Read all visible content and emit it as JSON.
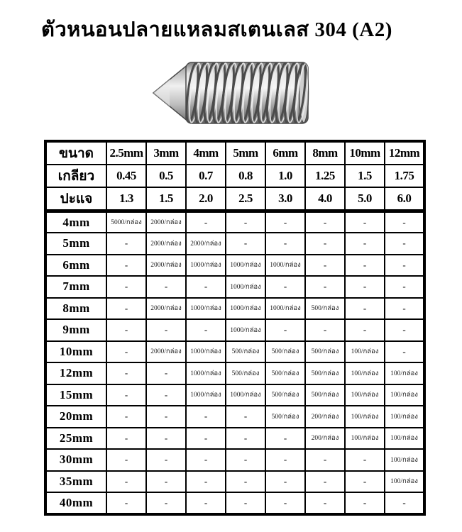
{
  "title": "ตัวหนอนปลายแหลมสเตนเลส 304 (A2)",
  "product_image": {
    "icon": "cone-point-set-screw-photo"
  },
  "table": {
    "header_rows": [
      {
        "label": "ขนาด",
        "values": [
          "2.5mm",
          "3mm",
          "4mm",
          "5mm",
          "6mm",
          "8mm",
          "10mm",
          "12mm"
        ]
      },
      {
        "label": "เกลียว",
        "values": [
          "0.45",
          "0.5",
          "0.7",
          "0.8",
          "1.0",
          "1.25",
          "1.5",
          "1.75"
        ]
      },
      {
        "label": "ปะแจ",
        "values": [
          "1.3",
          "1.5",
          "2.0",
          "2.5",
          "3.0",
          "4.0",
          "5.0",
          "6.0"
        ]
      }
    ],
    "body_rows": [
      {
        "label": "4mm",
        "values": [
          "5000/กล่อง",
          "2000/กล่อง",
          "-",
          "-",
          "-",
          "-",
          "-",
          "-"
        ]
      },
      {
        "label": "5mm",
        "values": [
          "-",
          "2000/กล่อง",
          "2000/กล่อง",
          "-",
          "-",
          "-",
          "-",
          "-"
        ]
      },
      {
        "label": "6mm",
        "values": [
          "-",
          "2000/กล่อง",
          "1000/กล่อง",
          "1000/กล่อง",
          "1000/กล่อง",
          "-",
          "-",
          "-"
        ]
      },
      {
        "label": "7mm",
        "values": [
          "-",
          "-",
          "-",
          "1000/กล่อง",
          "-",
          "-",
          "-",
          "-"
        ]
      },
      {
        "label": "8mm",
        "values": [
          "-",
          "2000/กล่อง",
          "1000/กล่อง",
          "1000/กล่อง",
          "1000/กล่อง",
          "500/กล่อง",
          "-",
          "-"
        ]
      },
      {
        "label": "9mm",
        "values": [
          "-",
          "-",
          "-",
          "1000/กล่อง",
          "-",
          "-",
          "-",
          "-"
        ]
      },
      {
        "label": "10mm",
        "values": [
          "-",
          "2000/กล่อง",
          "1000/กล่อง",
          "500/กล่อง",
          "500/กล่อง",
          "500/กล่อง",
          "100/กล่อง",
          "-"
        ]
      },
      {
        "label": "12mm",
        "values": [
          "-",
          "-",
          "1000/กล่อง",
          "500/กล่อง",
          "500/กล่อง",
          "500/กล่อง",
          "100/กล่อง",
          "100/กล่อง"
        ]
      },
      {
        "label": "15mm",
        "values": [
          "-",
          "-",
          "1000/กล่อง",
          "1000/กล่อง",
          "500/กล่อง",
          "500/กล่อง",
          "100/กล่อง",
          "100/กล่อง"
        ]
      },
      {
        "label": "20mm",
        "values": [
          "-",
          "-",
          "-",
          "-",
          "500/กล่อง",
          "200/กล่อง",
          "100/กล่อง",
          "100/กล่อง"
        ]
      },
      {
        "label": "25mm",
        "values": [
          "-",
          "-",
          "-",
          "-",
          "-",
          "200/กล่อง",
          "100/กล่อง",
          "100/กล่อง"
        ]
      },
      {
        "label": "30mm",
        "values": [
          "-",
          "-",
          "-",
          "-",
          "-",
          "-",
          "-",
          "100/กล่อง"
        ]
      },
      {
        "label": "35mm",
        "values": [
          "-",
          "-",
          "-",
          "-",
          "-",
          "-",
          "-",
          "100/กล่อง"
        ]
      },
      {
        "label": "40mm",
        "values": [
          "-",
          "-",
          "-",
          "-",
          "-",
          "-",
          "-",
          "-"
        ]
      }
    ]
  }
}
